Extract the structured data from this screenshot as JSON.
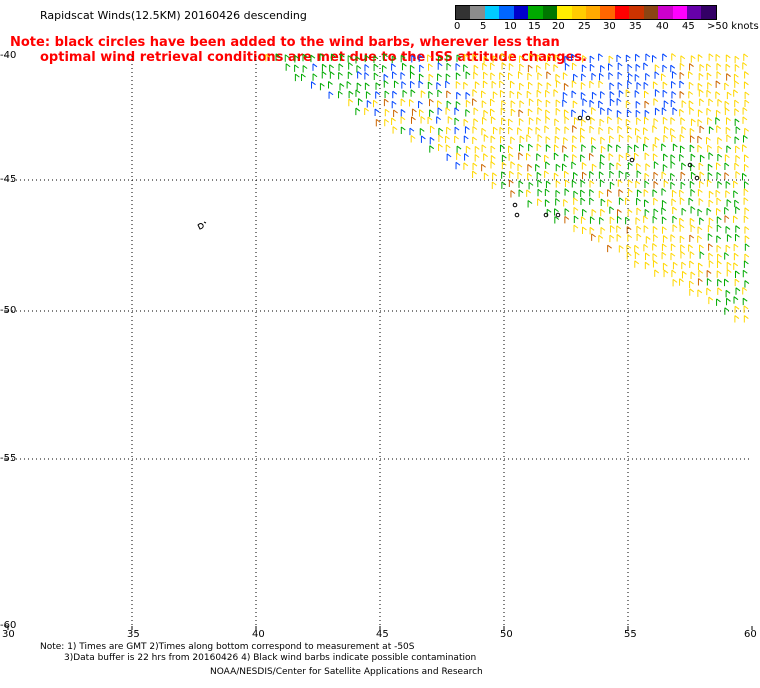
{
  "title": "Rapidscat Winds(12.5KM) 20160426 descending",
  "note": {
    "line1": "Note: black circles have been added to the wind barbs, wherever less than",
    "line2": "optimal wind retrieval conditions are met due to the ISS attitude changes."
  },
  "legend": {
    "labels": [
      "0",
      "5",
      "10",
      "15",
      "20",
      "25",
      "30",
      "35",
      "40",
      "45",
      ">50 knots"
    ],
    "colors": [
      "#333333",
      "#8c8c8c",
      "#00ccff",
      "#0066ff",
      "#0000cc",
      "#00aa00",
      "#007700",
      "#ffee00",
      "#ffcc00",
      "#ffaa00",
      "#ff6600",
      "#ff0000",
      "#cc3300",
      "#8b4513",
      "#cc00cc",
      "#ff00ff",
      "#6600aa",
      "#330066"
    ]
  },
  "axes": {
    "lat_labels": [
      "-40",
      "-45",
      "-50",
      "-55",
      "-60"
    ],
    "lon_labels": [
      "30",
      "35",
      "40",
      "45",
      "50",
      "55",
      "60"
    ]
  },
  "footer": {
    "line1": "Note: 1) Times are GMT 2)Times along bottom correspond to measurement at -50S",
    "line2": "3)Data buffer is 22 hrs from 20160426 4) Black wind barbs indicate possible contamination",
    "line3": "NOAA/NESDIS/Center for Satellite Applications and Research"
  },
  "colors": {
    "note": "#ff0000",
    "grid": "#000000",
    "barb_yellow": "#ffd700",
    "barb_green": "#00aa00",
    "barb_blue": "#0044ff",
    "barb_orange": "#cc6600"
  }
}
